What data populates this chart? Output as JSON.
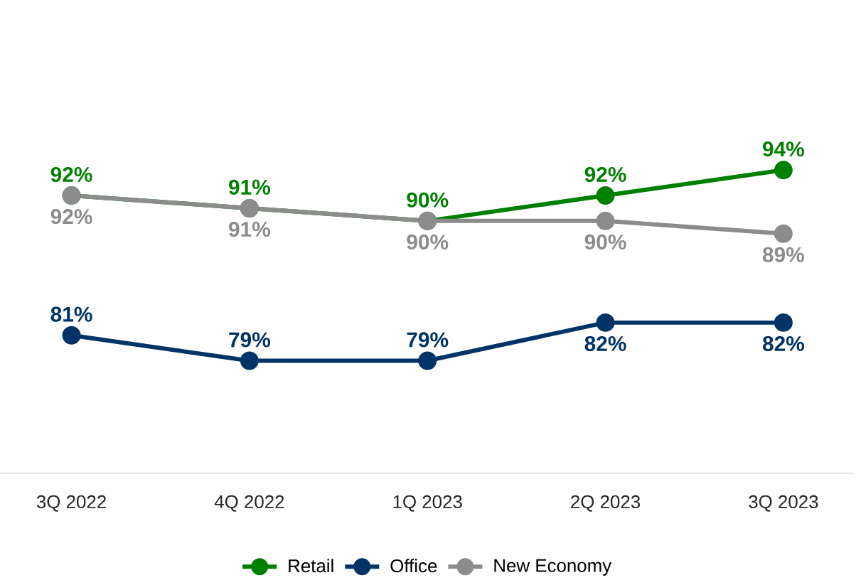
{
  "chart_data": {
    "type": "line",
    "categories": [
      "3Q 2022",
      "4Q 2022",
      "1Q 2023",
      "2Q 2023",
      "3Q 2023"
    ],
    "series": [
      {
        "name": "Retail",
        "color": "#008000",
        "values": [
          92,
          91,
          90,
          92,
          94
        ],
        "value_labels": [
          "92%",
          "91%",
          "90%",
          "92%",
          "94%"
        ]
      },
      {
        "name": "Office",
        "color": "#003366",
        "values": [
          81,
          79,
          79,
          82,
          82
        ],
        "value_labels": [
          "81%",
          "79%",
          "79%",
          "82%",
          "82%"
        ]
      },
      {
        "name": "New Economy",
        "color": "#8c8c8c",
        "values": [
          92,
          91,
          90,
          90,
          89
        ],
        "value_labels": [
          "92%",
          "91%",
          "90%",
          "90%",
          "89%"
        ]
      }
    ],
    "tick_labels": "x",
    "grid": false,
    "legend": "bottom",
    "marker": "circle",
    "line_style": "solid"
  }
}
